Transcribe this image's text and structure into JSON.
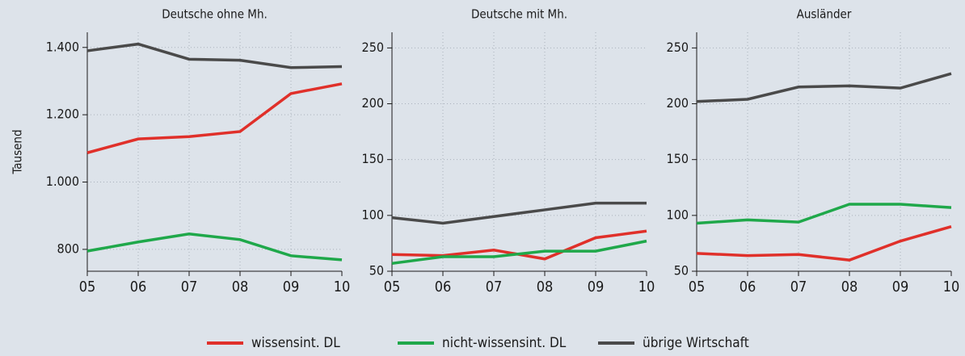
{
  "chart_data": [
    {
      "type": "line",
      "title": "Deutsche ohne Mh.",
      "y_label": "Tausend",
      "categories": [
        "05",
        "06",
        "07",
        "08",
        "09",
        "10"
      ],
      "ylim": [
        735,
        1445
      ],
      "yticks": [
        {
          "value": 800,
          "label": "800"
        },
        {
          "value": 1000,
          "label": "1.000"
        },
        {
          "value": 1200,
          "label": "1.200"
        },
        {
          "value": 1400,
          "label": "1.400"
        }
      ],
      "grid": true,
      "series": [
        {
          "name": "wissensint. DL",
          "color": "#e0302a",
          "values": [
            1087,
            1128,
            1135,
            1150,
            1263,
            1292
          ]
        },
        {
          "name": "nicht-wissensint. DL",
          "color": "#1fa84a",
          "values": [
            795,
            822,
            846,
            829,
            781,
            769
          ]
        },
        {
          "name": "übrige Wirtschaft",
          "color": "#4a4a4a",
          "values": [
            1390,
            1410,
            1365,
            1362,
            1340,
            1343
          ]
        }
      ]
    },
    {
      "type": "line",
      "title": "Deutsche mit Mh.",
      "categories": [
        "05",
        "06",
        "07",
        "08",
        "09",
        "10"
      ],
      "ylim": [
        50,
        264
      ],
      "yticks": [
        50,
        100,
        150,
        200,
        250
      ],
      "grid": true,
      "series": [
        {
          "name": "wissensint. DL",
          "color": "#e0302a",
          "values": [
            65,
            64,
            69,
            61,
            80,
            86
          ]
        },
        {
          "name": "nicht-wissensint. DL",
          "color": "#1fa84a",
          "values": [
            57,
            63,
            63,
            68,
            68,
            77
          ]
        },
        {
          "name": "übrige Wirtschaft",
          "color": "#4a4a4a",
          "values": [
            98,
            93,
            99,
            105,
            111,
            111
          ]
        }
      ]
    },
    {
      "type": "line",
      "title": "Ausländer",
      "categories": [
        "05",
        "06",
        "07",
        "08",
        "09",
        "10"
      ],
      "ylim": [
        50,
        264
      ],
      "yticks": [
        50,
        100,
        150,
        200,
        250
      ],
      "grid": true,
      "series": [
        {
          "name": "wissensint. DL",
          "color": "#e0302a",
          "values": [
            66,
            64,
            65,
            60,
            77,
            90
          ]
        },
        {
          "name": "nicht-wissensint. DL",
          "color": "#1fa84a",
          "values": [
            93,
            96,
            94,
            110,
            110,
            107
          ]
        },
        {
          "name": "übrige Wirtschaft",
          "color": "#4a4a4a",
          "values": [
            202,
            204,
            215,
            216,
            214,
            227
          ]
        }
      ]
    }
  ]
}
